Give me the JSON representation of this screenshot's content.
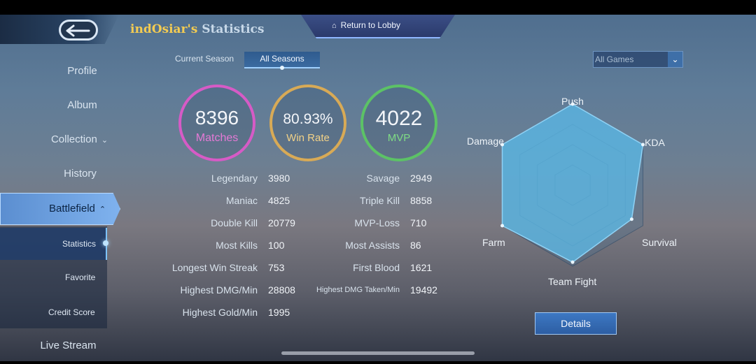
{
  "header": {
    "title_name": "indOsiar's",
    "title_suffix": "Statistics",
    "return_label": "Return to Lobby"
  },
  "sidebar": {
    "items": [
      {
        "label": "Profile"
      },
      {
        "label": "Album"
      },
      {
        "label": "Collection"
      },
      {
        "label": "History"
      },
      {
        "label": "Battlefield"
      },
      {
        "label": "Live Stream"
      }
    ],
    "subitems": [
      {
        "label": "Statistics"
      },
      {
        "label": "Favorite"
      },
      {
        "label": "Credit Score"
      }
    ]
  },
  "tabs": {
    "current": "Current Season",
    "all": "All Seasons"
  },
  "filter": {
    "selected": "All Games"
  },
  "summary": {
    "matches": {
      "value": "8396",
      "label": "Matches"
    },
    "winrate": {
      "value": "80.93%",
      "label": "Win Rate"
    },
    "mvp": {
      "value": "4022",
      "label": "MVP"
    }
  },
  "stats_left": [
    {
      "label": "Legendary",
      "value": "3980"
    },
    {
      "label": "Maniac",
      "value": "4825"
    },
    {
      "label": "Double Kill",
      "value": "20779"
    },
    {
      "label": "Most Kills",
      "value": "100"
    },
    {
      "label": "Longest Win Streak",
      "value": "753"
    },
    {
      "label": "Highest DMG/Min",
      "value": "28808"
    },
    {
      "label": "Highest Gold/Min",
      "value": "1995"
    }
  ],
  "stats_right": [
    {
      "label": "Savage",
      "value": "2949"
    },
    {
      "label": "Triple Kill",
      "value": "8858"
    },
    {
      "label": "MVP-Loss",
      "value": "710"
    },
    {
      "label": "Most Assists",
      "value": "86"
    },
    {
      "label": "First Blood",
      "value": "1621"
    },
    {
      "label": "Highest DMG Taken/Min",
      "value": "19492"
    }
  ],
  "radar": {
    "labels": [
      "Push",
      "KDA",
      "Survival",
      "Team Fight",
      "Farm",
      "Damage"
    ],
    "values": [
      1.0,
      1.0,
      0.84,
      0.95,
      1.0,
      1.0
    ]
  },
  "details_label": "Details",
  "colors": {
    "matches": "#d65bc6",
    "winrate": "#d8aa56",
    "mvp": "#5cc266",
    "title_name": "#f3cb52",
    "radar_fill": "#5cb8e6"
  }
}
